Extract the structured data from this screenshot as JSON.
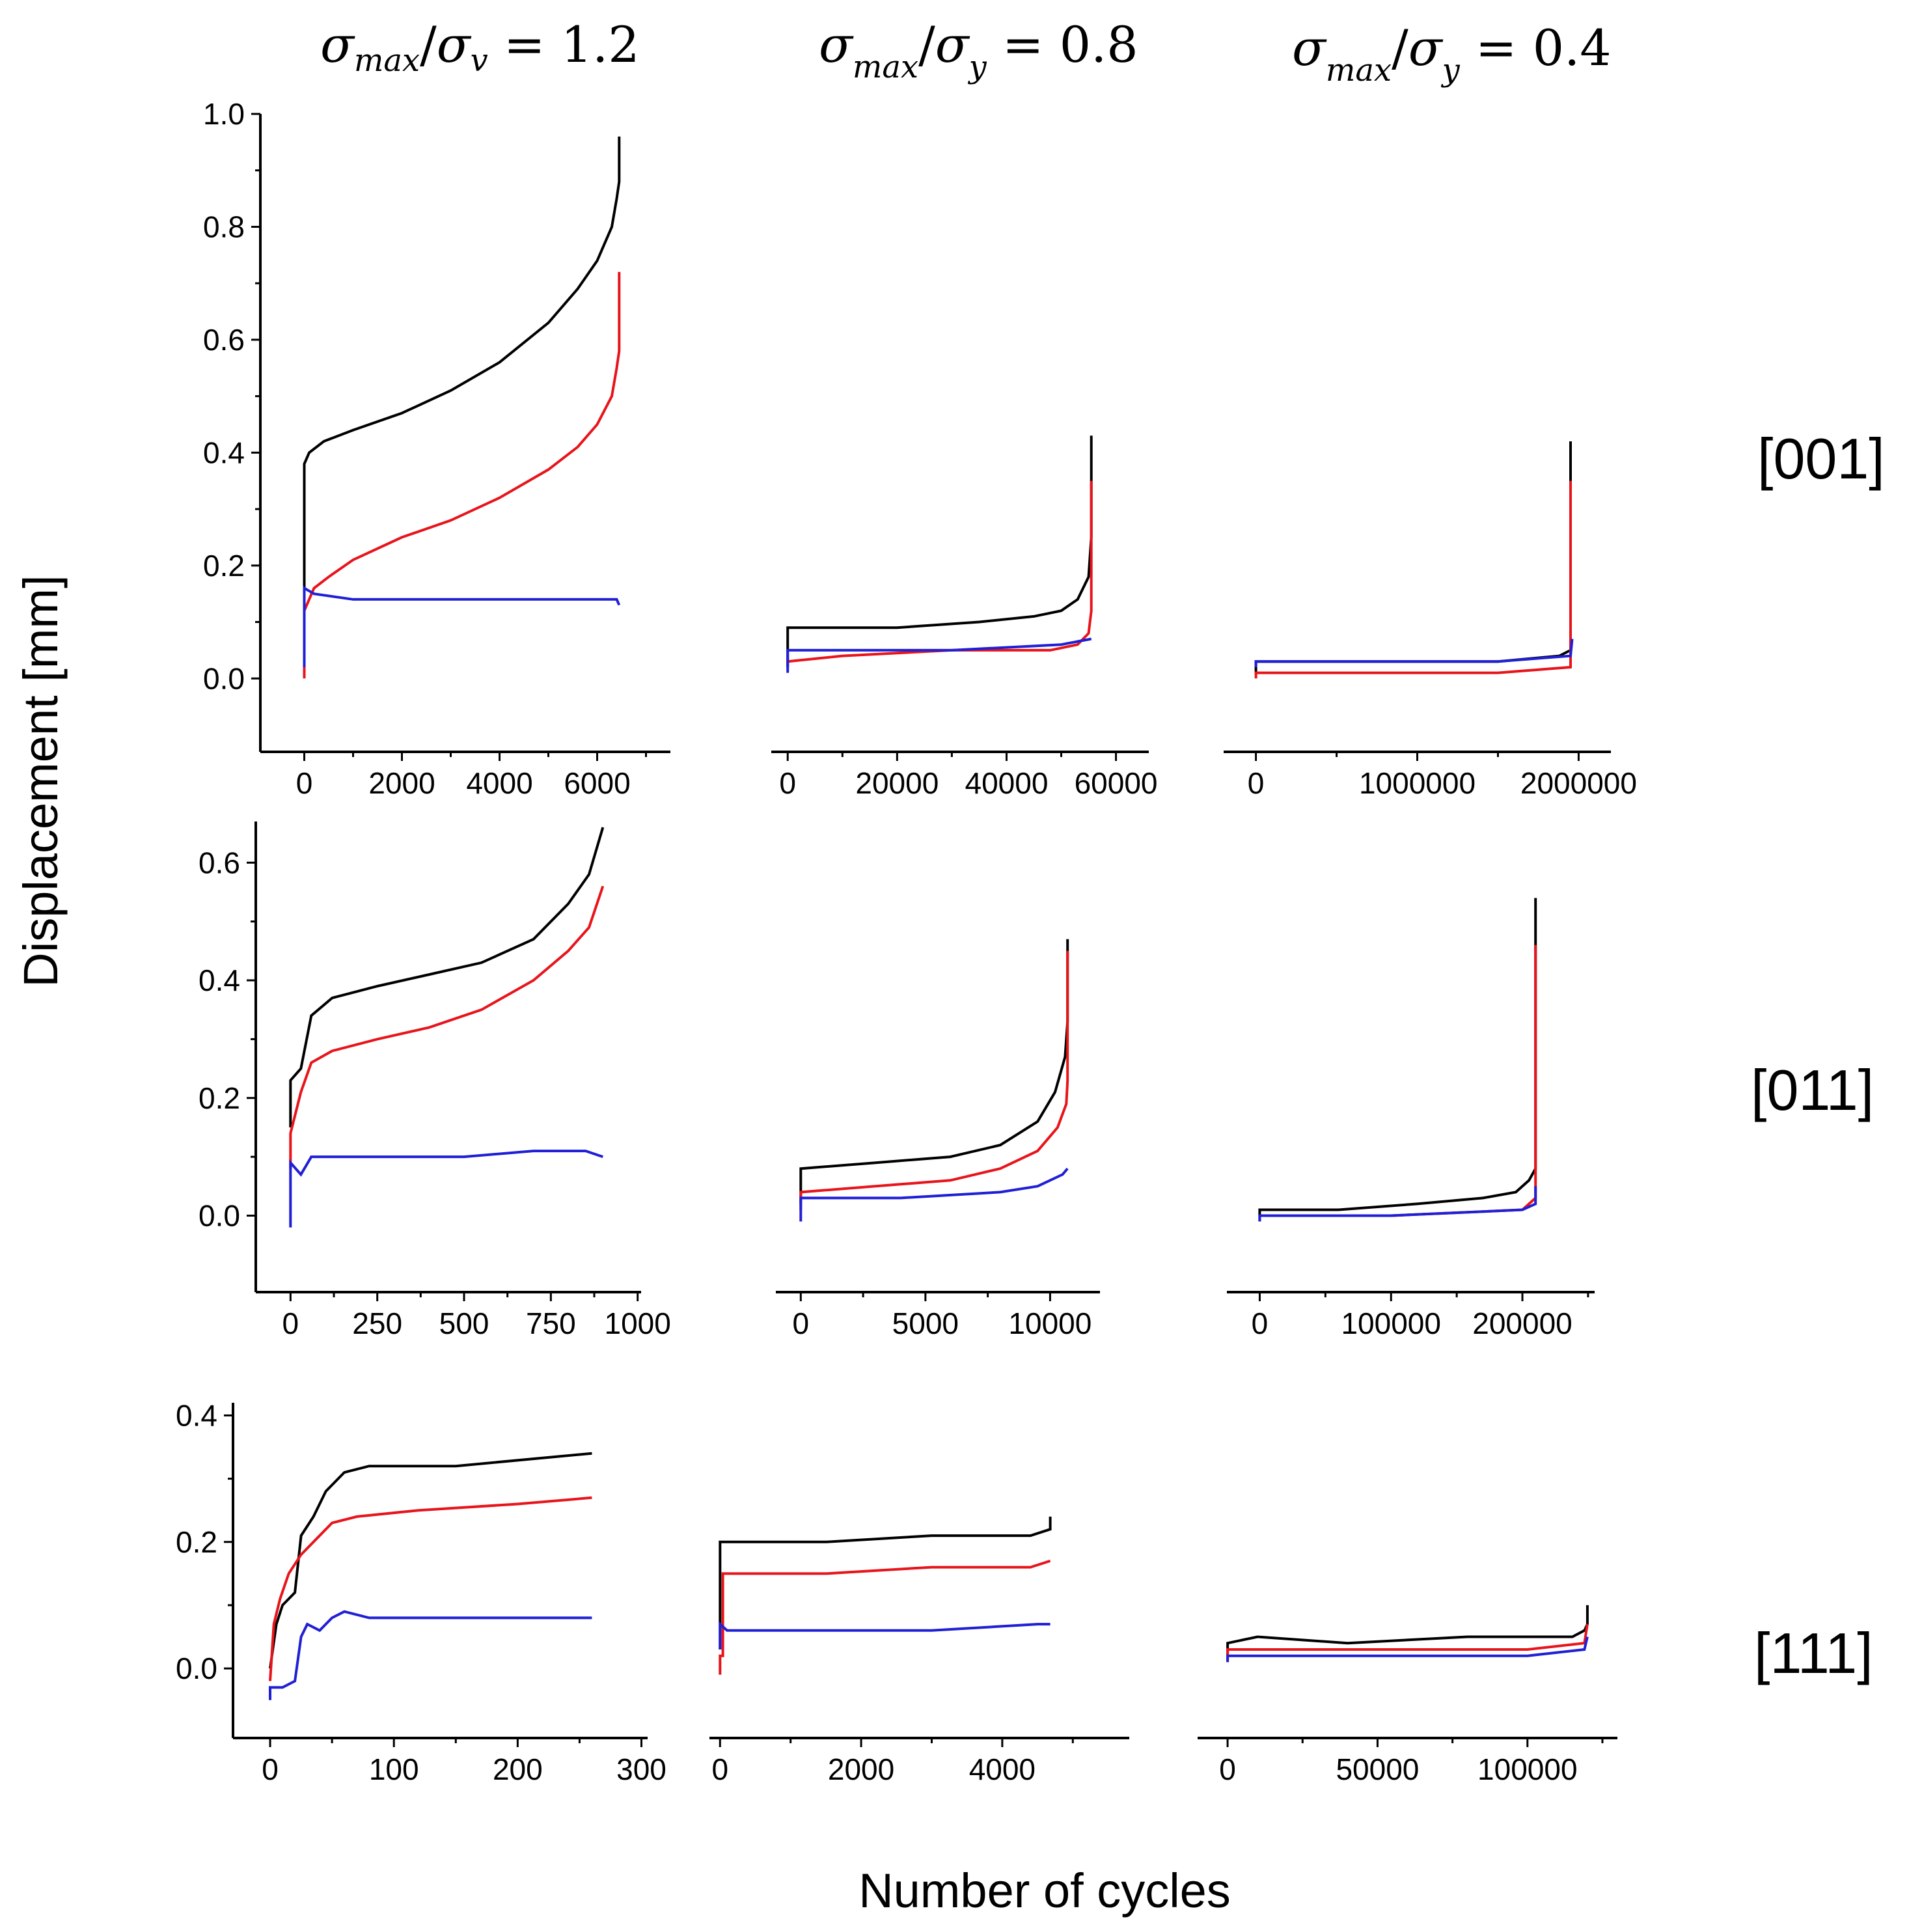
{
  "figure": {
    "ylabel": "Displacement [mm]",
    "xlabel": "Number of cycles",
    "column_titles": [
      {
        "sigma": "σ",
        "num_sub": "max",
        "slash": "/",
        "den_sub": "v",
        "value": " = 1.2"
      },
      {
        "sigma": "σ",
        "num_sub": "max",
        "slash": "/",
        "den_sub": "y",
        "value": " = 0.8"
      },
      {
        "sigma": "σ",
        "num_sub": "max",
        "slash": "/",
        "den_sub": "y",
        "value": " = 0.4"
      }
    ],
    "row_labels": [
      "[001]",
      "[011]",
      "[111]"
    ],
    "colors": {
      "black": "#000000",
      "red": "#e8141b",
      "blue": "#1f1fd6"
    }
  },
  "chart_data": [
    {
      "type": "line",
      "row": "[001]",
      "column": "σmax/σv = 1.2",
      "xlim": [
        -900,
        7500
      ],
      "ylim": [
        -0.13,
        1.0
      ],
      "xticks": [
        0,
        2000,
        4000,
        6000
      ],
      "xtick_labels": [
        "0",
        "2000",
        "4000",
        "6000"
      ],
      "yticks": [
        0.0,
        0.2,
        0.4,
        0.6,
        0.8,
        1.0
      ],
      "ytick_labels": [
        "0.0",
        "0.2",
        "0.4",
        "0.6",
        "0.8",
        "1.0"
      ],
      "series": [
        {
          "color": "black",
          "x": [
            0,
            0,
            100,
            400,
            1000,
            2000,
            3000,
            4000,
            5000,
            5600,
            6000,
            6300,
            6400,
            6450,
            6450
          ],
          "y": [
            0.15,
            0.38,
            0.4,
            0.42,
            0.44,
            0.47,
            0.51,
            0.56,
            0.63,
            0.69,
            0.74,
            0.8,
            0.85,
            0.88,
            0.96
          ]
        },
        {
          "color": "red",
          "x": [
            0,
            0,
            200,
            500,
            1000,
            2000,
            3000,
            4000,
            5000,
            5600,
            6000,
            6300,
            6400,
            6450,
            6450
          ],
          "y": [
            0.0,
            0.12,
            0.16,
            0.18,
            0.21,
            0.25,
            0.28,
            0.32,
            0.37,
            0.41,
            0.45,
            0.5,
            0.55,
            0.58,
            0.72
          ]
        },
        {
          "color": "blue",
          "x": [
            0,
            0,
            200,
            1000,
            1200,
            3000,
            4500,
            6400,
            6450
          ],
          "y": [
            0.02,
            0.16,
            0.15,
            0.14,
            0.14,
            0.14,
            0.14,
            0.14,
            0.13
          ]
        }
      ]
    },
    {
      "type": "line",
      "row": "[001]",
      "column": "σmax/σy = 0.8",
      "xlim": [
        -3000,
        66000
      ],
      "ylim": [
        -0.13,
        1.0
      ],
      "xticks": [
        0,
        20000,
        40000,
        60000
      ],
      "xtick_labels": [
        "0",
        "20000",
        "40000",
        "60000"
      ],
      "yticks": [],
      "ytick_labels": [],
      "series": [
        {
          "color": "black",
          "x": [
            0,
            0,
            20000,
            35000,
            45000,
            50000,
            53000,
            55000,
            55500,
            55500
          ],
          "y": [
            0.02,
            0.09,
            0.09,
            0.1,
            0.11,
            0.12,
            0.14,
            0.18,
            0.25,
            0.43
          ]
        },
        {
          "color": "red",
          "x": [
            0,
            0,
            10000,
            30000,
            48000,
            53000,
            55000,
            55500,
            55500
          ],
          "y": [
            0.02,
            0.03,
            0.04,
            0.05,
            0.05,
            0.06,
            0.08,
            0.12,
            0.35
          ]
        },
        {
          "color": "blue",
          "x": [
            0,
            0,
            10000,
            30000,
            50000,
            55500
          ],
          "y": [
            0.01,
            0.05,
            0.05,
            0.05,
            0.06,
            0.07
          ]
        }
      ]
    },
    {
      "type": "line",
      "row": "[001]",
      "column": "σmax/σy = 0.4",
      "xlim": [
        -200000,
        2200000
      ],
      "ylim": [
        -0.13,
        1.0
      ],
      "xticks": [
        0,
        1000000,
        2000000
      ],
      "xtick_labels": [
        "0",
        "1000000",
        "2000000"
      ],
      "yticks": [],
      "ytick_labels": [],
      "series": [
        {
          "color": "black",
          "x": [
            0,
            0,
            500000,
            1000000,
            1500000,
            1880000,
            1950000,
            1950000
          ],
          "y": [
            0.01,
            0.03,
            0.03,
            0.03,
            0.03,
            0.04,
            0.05,
            0.42
          ]
        },
        {
          "color": "red",
          "x": [
            0,
            0,
            500000,
            1000000,
            1500000,
            1950000,
            1950000
          ],
          "y": [
            0.0,
            0.01,
            0.01,
            0.01,
            0.01,
            0.02,
            0.35
          ]
        },
        {
          "color": "blue",
          "x": [
            0,
            0,
            500000,
            1000000,
            1500000,
            1950000,
            1960000
          ],
          "y": [
            0.02,
            0.03,
            0.03,
            0.03,
            0.03,
            0.04,
            0.07
          ]
        }
      ]
    },
    {
      "type": "line",
      "row": "[011]",
      "column": "σmax/σv = 1.2",
      "xlim": [
        -100,
        1010
      ],
      "ylim": [
        -0.13,
        0.67
      ],
      "xticks": [
        0,
        250,
        500,
        750,
        1000
      ],
      "xtick_labels": [
        "0",
        "250",
        "500",
        "750",
        "1000"
      ],
      "yticks": [
        0.0,
        0.2,
        0.4,
        0.6
      ],
      "ytick_labels": [
        "0.0",
        "0.2",
        "0.4",
        "0.6"
      ],
      "series": [
        {
          "color": "black",
          "x": [
            0,
            0,
            30,
            60,
            120,
            250,
            400,
            550,
            700,
            800,
            860,
            900
          ],
          "y": [
            0.15,
            0.23,
            0.25,
            0.34,
            0.37,
            0.39,
            0.41,
            0.43,
            0.47,
            0.53,
            0.58,
            0.66
          ]
        },
        {
          "color": "red",
          "x": [
            0,
            0,
            30,
            60,
            120,
            250,
            400,
            550,
            700,
            800,
            860,
            900
          ],
          "y": [
            0.08,
            0.14,
            0.21,
            0.26,
            0.28,
            0.3,
            0.32,
            0.35,
            0.4,
            0.45,
            0.49,
            0.56
          ]
        },
        {
          "color": "blue",
          "x": [
            0,
            0,
            30,
            60,
            250,
            500,
            700,
            850,
            900
          ],
          "y": [
            -0.02,
            0.09,
            0.07,
            0.1,
            0.1,
            0.1,
            0.11,
            0.11,
            0.1
          ]
        }
      ]
    },
    {
      "type": "line",
      "row": "[011]",
      "column": "σmax/σy = 0.8",
      "xlim": [
        -1000,
        12000
      ],
      "ylim": [
        -0.13,
        0.67
      ],
      "xticks": [
        0,
        5000,
        10000
      ],
      "xtick_labels": [
        "0",
        "5000",
        "10000"
      ],
      "yticks": [],
      "ytick_labels": [],
      "series": [
        {
          "color": "black",
          "x": [
            0,
            0,
            3000,
            6000,
            8000,
            9500,
            10200,
            10600,
            10700,
            10700
          ],
          "y": [
            0.02,
            0.08,
            0.09,
            0.1,
            0.12,
            0.16,
            0.21,
            0.27,
            0.33,
            0.47
          ]
        },
        {
          "color": "red",
          "x": [
            0,
            0,
            3000,
            6000,
            8000,
            9500,
            10300,
            10650,
            10700,
            10700
          ],
          "y": [
            0.01,
            0.04,
            0.05,
            0.06,
            0.08,
            0.11,
            0.15,
            0.19,
            0.23,
            0.45
          ]
        },
        {
          "color": "blue",
          "x": [
            0,
            0,
            4000,
            8000,
            9500,
            10500,
            10700
          ],
          "y": [
            -0.01,
            0.03,
            0.03,
            0.04,
            0.05,
            0.07,
            0.08
          ]
        }
      ]
    },
    {
      "type": "line",
      "row": "[011]",
      "column": "σmax/σy = 0.4",
      "xlim": [
        -25000,
        255000
      ],
      "ylim": [
        -0.13,
        0.67
      ],
      "xticks": [
        0,
        100000,
        200000
      ],
      "xtick_labels": [
        "0",
        "100000",
        "200000"
      ],
      "yticks": [],
      "ytick_labels": [],
      "series": [
        {
          "color": "black",
          "x": [
            0,
            0,
            60000,
            120000,
            170000,
            195000,
            205000,
            210000,
            210000
          ],
          "y": [
            0.0,
            0.01,
            0.01,
            0.02,
            0.03,
            0.04,
            0.06,
            0.08,
            0.54
          ]
        },
        {
          "color": "red",
          "x": [
            0,
            0,
            100000,
            200000,
            210000,
            210000
          ],
          "y": [
            -0.01,
            0.0,
            0.0,
            0.01,
            0.03,
            0.46
          ]
        },
        {
          "color": "blue",
          "x": [
            0,
            0,
            100000,
            200000,
            210000,
            210000
          ],
          "y": [
            -0.01,
            0.0,
            0.0,
            0.01,
            0.02,
            0.05
          ]
        }
      ]
    },
    {
      "type": "line",
      "row": "[111]",
      "column": "σmax/σv = 1.2",
      "xlim": [
        -30,
        305
      ],
      "ylim": [
        -0.11,
        0.42
      ],
      "xticks": [
        0,
        100,
        200,
        300
      ],
      "xtick_labels": [
        "0",
        "100",
        "200",
        "300"
      ],
      "yticks": [
        0.0,
        0.2,
        0.4
      ],
      "ytick_labels": [
        "0.0",
        "0.2",
        "0.4"
      ],
      "series": [
        {
          "color": "black",
          "x": [
            0,
            5,
            10,
            20,
            25,
            35,
            45,
            60,
            80,
            150,
            260
          ],
          "y": [
            0.0,
            0.07,
            0.1,
            0.12,
            0.21,
            0.24,
            0.28,
            0.31,
            0.32,
            0.32,
            0.34
          ]
        },
        {
          "color": "red",
          "x": [
            0,
            3,
            8,
            15,
            25,
            35,
            50,
            70,
            120,
            200,
            260
          ],
          "y": [
            -0.02,
            0.07,
            0.11,
            0.15,
            0.18,
            0.2,
            0.23,
            0.24,
            0.25,
            0.26,
            0.27
          ]
        },
        {
          "color": "blue",
          "x": [
            0,
            0,
            10,
            20,
            25,
            30,
            40,
            50,
            60,
            80,
            150,
            260
          ],
          "y": [
            -0.05,
            -0.03,
            -0.03,
            -0.02,
            0.05,
            0.07,
            0.06,
            0.08,
            0.09,
            0.08,
            0.08,
            0.08
          ]
        }
      ]
    },
    {
      "type": "line",
      "row": "[111]",
      "column": "σmax/σy = 0.8",
      "xlim": [
        -150,
        5800
      ],
      "ylim": [
        -0.11,
        0.42
      ],
      "xticks": [
        0,
        2000,
        4000
      ],
      "xtick_labels": [
        "0",
        "2000",
        "4000"
      ],
      "yticks": [],
      "ytick_labels": [],
      "series": [
        {
          "color": "black",
          "x": [
            0,
            0,
            1500,
            3000,
            4400,
            4680,
            4680
          ],
          "y": [
            0.03,
            0.2,
            0.2,
            0.21,
            0.21,
            0.22,
            0.24
          ]
        },
        {
          "color": "red",
          "x": [
            0,
            0,
            40,
            40,
            1500,
            3000,
            4400,
            4680
          ],
          "y": [
            -0.01,
            0.02,
            0.02,
            0.15,
            0.15,
            0.16,
            0.16,
            0.17
          ]
        },
        {
          "color": "blue",
          "x": [
            0,
            0,
            100,
            1500,
            3000,
            4500,
            4680
          ],
          "y": [
            0.03,
            0.07,
            0.06,
            0.06,
            0.06,
            0.07,
            0.07
          ]
        }
      ]
    },
    {
      "type": "line",
      "row": "[111]",
      "column": "σmax/σy = 0.4",
      "xlim": [
        -10000,
        130000
      ],
      "ylim": [
        -0.11,
        0.42
      ],
      "xticks": [
        0,
        50000,
        100000
      ],
      "xtick_labels": [
        "0",
        "50000",
        "100000"
      ],
      "yticks": [],
      "ytick_labels": [],
      "series": [
        {
          "color": "black",
          "x": [
            0,
            0,
            10000,
            40000,
            80000,
            115000,
            119000,
            120000,
            120000
          ],
          "y": [
            0.02,
            0.04,
            0.05,
            0.04,
            0.05,
            0.05,
            0.06,
            0.07,
            0.1
          ]
        },
        {
          "color": "red",
          "x": [
            0,
            0,
            30000,
            60000,
            100000,
            119000,
            120000
          ],
          "y": [
            0.01,
            0.03,
            0.03,
            0.03,
            0.03,
            0.04,
            0.07
          ]
        },
        {
          "color": "blue",
          "x": [
            0,
            0,
            30000,
            60000,
            100000,
            119000,
            120000
          ],
          "y": [
            0.01,
            0.02,
            0.02,
            0.02,
            0.02,
            0.03,
            0.05
          ]
        }
      ]
    }
  ]
}
